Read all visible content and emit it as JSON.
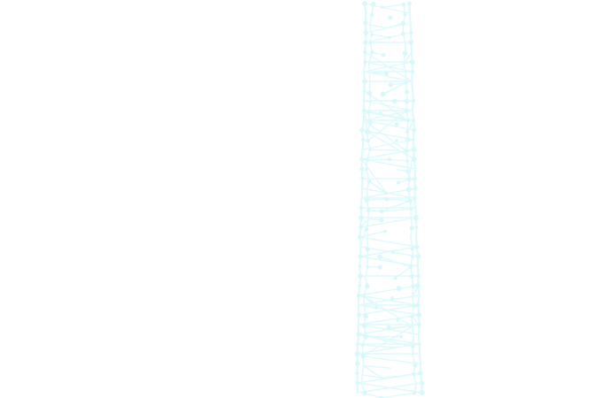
{
  "graphic": {
    "icon": "network-mesh",
    "line_color": "#e0fafc",
    "node_color": "#d8f8fb",
    "background": "#ffffff"
  }
}
